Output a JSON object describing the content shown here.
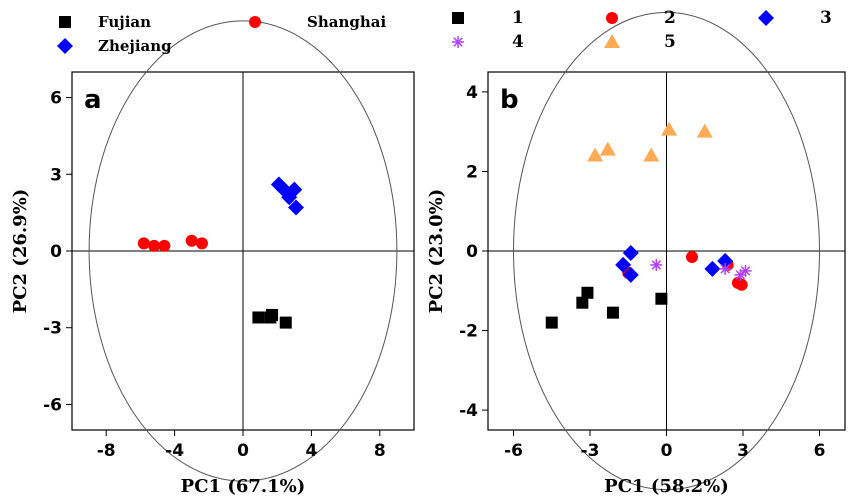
{
  "chart_data": [
    {
      "type": "scatter",
      "panel_label": "a",
      "xlabel": "PC1 (67.1%)",
      "ylabel": "PC2 (26.9%)",
      "xlim": [
        -10,
        10
      ],
      "ylim": [
        -7,
        7
      ],
      "xticks": [
        -8,
        -4,
        0,
        4,
        8
      ],
      "yticks": [
        -6,
        -3,
        0,
        3,
        6
      ],
      "circle_radius": 9,
      "series": [
        {
          "name": "Fujian",
          "color": "#000000",
          "marker": "square",
          "points": [
            [
              0.9,
              -2.6
            ],
            [
              1.6,
              -2.6
            ],
            [
              1.7,
              -2.5
            ],
            [
              2.5,
              -2.8
            ]
          ]
        },
        {
          "name": "Shanghai",
          "color": "#ff0000",
          "marker": "circle",
          "points": [
            [
              -5.8,
              0.3
            ],
            [
              -5.2,
              0.2
            ],
            [
              -4.6,
              0.2
            ],
            [
              -3.0,
              0.4
            ],
            [
              -2.4,
              0.3
            ]
          ]
        },
        {
          "name": "Zhejiang",
          "color": "#0000ff",
          "marker": "diamond",
          "points": [
            [
              2.1,
              2.6
            ],
            [
              2.4,
              2.4
            ],
            [
              2.7,
              2.1
            ],
            [
              3.0,
              2.4
            ],
            [
              3.1,
              1.7
            ]
          ]
        }
      ]
    },
    {
      "type": "scatter",
      "panel_label": "b",
      "xlabel": "PC1 (58.2%)",
      "ylabel": "PC2 (23.0%)",
      "xlim": [
        -7,
        7
      ],
      "ylim": [
        -4.5,
        4.5
      ],
      "xticks": [
        -6,
        -3,
        0,
        3,
        6
      ],
      "yticks": [
        -4,
        -2,
        0,
        2,
        4
      ],
      "circle_radius": 6,
      "series": [
        {
          "name": "1",
          "color": "#000000",
          "marker": "square",
          "points": [
            [
              -4.5,
              -1.8
            ],
            [
              -3.3,
              -1.3
            ],
            [
              -3.1,
              -1.05
            ],
            [
              -2.1,
              -1.55
            ],
            [
              -0.2,
              -1.2
            ]
          ]
        },
        {
          "name": "2",
          "color": "#ff0000",
          "marker": "circle",
          "points": [
            [
              -1.5,
              -0.55
            ],
            [
              1.0,
              -0.15
            ],
            [
              2.4,
              -0.35
            ],
            [
              2.8,
              -0.8
            ],
            [
              2.95,
              -0.85
            ]
          ]
        },
        {
          "name": "3",
          "color": "#0000ff",
          "marker": "diamond",
          "points": [
            [
              -1.7,
              -0.35
            ],
            [
              -1.4,
              -0.05
            ],
            [
              -1.4,
              -0.6
            ],
            [
              1.8,
              -0.45
            ],
            [
              2.3,
              -0.25
            ]
          ]
        },
        {
          "name": "4",
          "color": "#b040ff",
          "marker": "asterisk",
          "points": [
            [
              -0.4,
              -0.35
            ],
            [
              2.3,
              -0.45
            ],
            [
              2.9,
              -0.6
            ],
            [
              3.1,
              -0.5
            ]
          ]
        },
        {
          "name": "5",
          "color": "#ffaa55",
          "marker": "triangle",
          "points": [
            [
              -2.8,
              2.4
            ],
            [
              -2.3,
              2.55
            ],
            [
              -0.6,
              2.4
            ],
            [
              0.1,
              3.05
            ],
            [
              1.5,
              3.0
            ]
          ]
        }
      ]
    }
  ]
}
